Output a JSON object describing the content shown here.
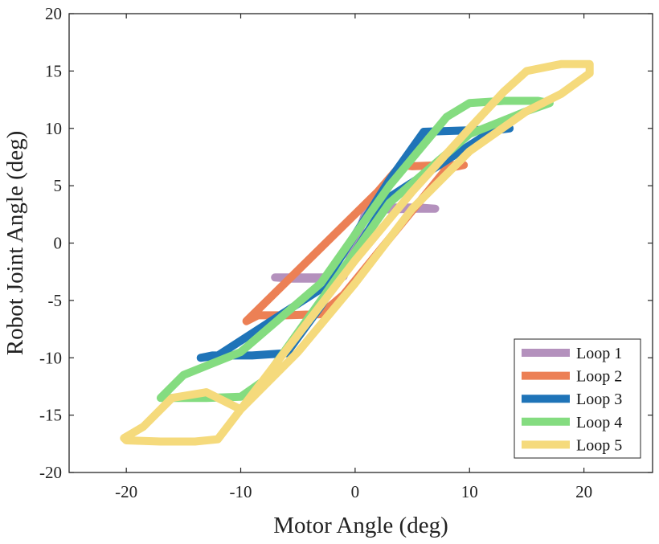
{
  "chart_data": {
    "type": "line",
    "title": "",
    "xlabel": "Motor Angle (deg)",
    "ylabel": "Robot Joint Angle (deg)",
    "xlim": [
      -25,
      26
    ],
    "ylim": [
      -20,
      20
    ],
    "xticks": [
      -20,
      -10,
      0,
      10,
      20
    ],
    "yticks": [
      -20,
      -15,
      -10,
      -5,
      0,
      5,
      10,
      15,
      20
    ],
    "xtick_labels": [
      "-20",
      "-10",
      "0",
      "10",
      "20"
    ],
    "ytick_labels": [
      "-20",
      "-15",
      "-10",
      "-5",
      "0",
      "5",
      "10",
      "15",
      "20"
    ],
    "grid": false,
    "legend_position": "bottom-right",
    "series": [
      {
        "name": "Loop 1",
        "color": "#b491bd",
        "x": [
          -5.5,
          -3,
          -1,
          1,
          5.5,
          7,
          5.5,
          3,
          1,
          -1,
          -3,
          -5.5,
          -7,
          -5.5
        ],
        "y": [
          -3.1,
          -3.1,
          -2.8,
          2.9,
          3.0,
          3.0,
          3.1,
          3.1,
          2.8,
          -2.9,
          -3.0,
          -3.0,
          -3.0,
          -3.1
        ]
      },
      {
        "name": "Loop 2",
        "color": "#ec8055",
        "x": [
          -8.5,
          -6,
          -3,
          -1,
          8,
          9.5,
          8,
          5,
          4,
          2,
          -9.5,
          -8.5
        ],
        "y": [
          -6.3,
          -6.3,
          -6.2,
          -4.5,
          6.5,
          6.8,
          6.8,
          6.7,
          6.8,
          4.5,
          -6.8,
          -6.3
        ]
      },
      {
        "name": "Loop 3",
        "color": "#1f74b8",
        "x": [
          -12.5,
          -9,
          -6,
          -3,
          3,
          12,
          13.5,
          12,
          9,
          6,
          3,
          -3,
          -12,
          -13.5,
          -12.5
        ],
        "y": [
          -9.8,
          -9.8,
          -9.6,
          -5.5,
          4,
          9.8,
          10,
          9.9,
          9.8,
          9.7,
          5.5,
          -4,
          -9.8,
          -10,
          -9.8
        ]
      },
      {
        "name": "Loop 4",
        "color": "#84dc80",
        "x": [
          -16.5,
          -13,
          -10,
          -8,
          -3,
          3,
          10,
          15,
          17,
          16,
          13,
          10,
          8,
          3,
          -3,
          -10,
          -15,
          -17,
          -16.5
        ],
        "y": [
          -13.5,
          -13.5,
          -13.4,
          -12,
          -5,
          3.5,
          9.5,
          11.5,
          12.2,
          12.4,
          12.4,
          12.2,
          11,
          5,
          -3.5,
          -9.5,
          -11.5,
          -13.5,
          -13.5
        ]
      },
      {
        "name": "Loop 5",
        "color": "#f5da7c",
        "x": [
          -20,
          -17,
          -14,
          -12,
          -10,
          -5,
          0,
          5,
          10,
          13,
          15,
          18,
          20.5,
          20.5,
          18,
          15,
          10,
          5,
          0,
          -5,
          -10,
          -13,
          -16,
          -18.5,
          -20.2,
          -20
        ],
        "y": [
          -17.2,
          -17.3,
          -17.3,
          -17.1,
          -14.5,
          -8,
          -1.5,
          4.5,
          10.0,
          13.2,
          15.0,
          15.6,
          15.6,
          14.8,
          13.0,
          11.5,
          8.0,
          3.0,
          -3.5,
          -9.5,
          -14.5,
          -13,
          -13.5,
          -16.0,
          -17.0,
          -17.2
        ]
      }
    ]
  }
}
